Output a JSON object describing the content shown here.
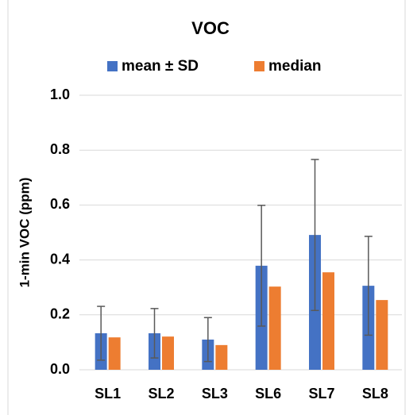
{
  "chart_data": {
    "type": "bar",
    "title": "VOC",
    "y_label": "1-min VOC (ppm)",
    "categories": [
      "SL1",
      "SL2",
      "SL3",
      "SL6",
      "SL7",
      "SL8"
    ],
    "series": [
      {
        "name": "mean ± SD",
        "color": "#4472c4",
        "values": [
          0.133,
          0.133,
          0.11,
          0.379,
          0.491,
          0.306
        ],
        "errors": [
          0.098,
          0.09,
          0.08,
          0.22,
          0.275,
          0.18
        ]
      },
      {
        "name": "median",
        "color": "#ed7d31",
        "values": [
          0.118,
          0.121,
          0.09,
          0.303,
          0.355,
          0.254
        ]
      }
    ],
    "ylim": [
      0,
      1.0
    ],
    "yticks": [
      {
        "value": 0,
        "label": "0.0"
      },
      {
        "value": 0.2,
        "label": "0.2"
      },
      {
        "value": 0.4,
        "label": "0.4"
      },
      {
        "value": 0.6,
        "label": "0.6"
      },
      {
        "value": 0.8,
        "label": "0.8"
      },
      {
        "value": 1.0,
        "label": "1.0"
      }
    ],
    "grid": true
  }
}
